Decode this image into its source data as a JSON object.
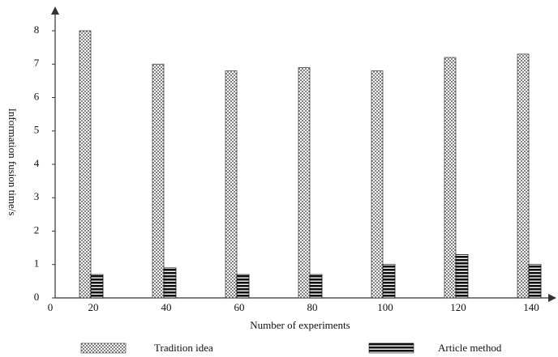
{
  "chart_data": {
    "type": "bar",
    "y_label": "Information fusion time/s",
    "x_label": "Number of experiments",
    "x_origin_label": "0",
    "categories": [
      "20",
      "40",
      "60",
      "80",
      "100",
      "120",
      "140"
    ],
    "series": [
      {
        "name": "Tradition idea",
        "color": "#444444",
        "pattern": "crosshatch",
        "values": [
          8.0,
          7.0,
          6.8,
          6.9,
          6.8,
          7.2,
          7.3
        ]
      },
      {
        "name": "Article method",
        "color": "#111111",
        "pattern": "stripes",
        "values": [
          0.7,
          0.9,
          0.7,
          0.7,
          1.0,
          1.3,
          1.0
        ]
      }
    ],
    "ylim": [
      0,
      8
    ],
    "yticks": [
      0,
      1,
      2,
      3,
      4,
      5,
      6,
      7,
      8
    ],
    "grid": false
  }
}
